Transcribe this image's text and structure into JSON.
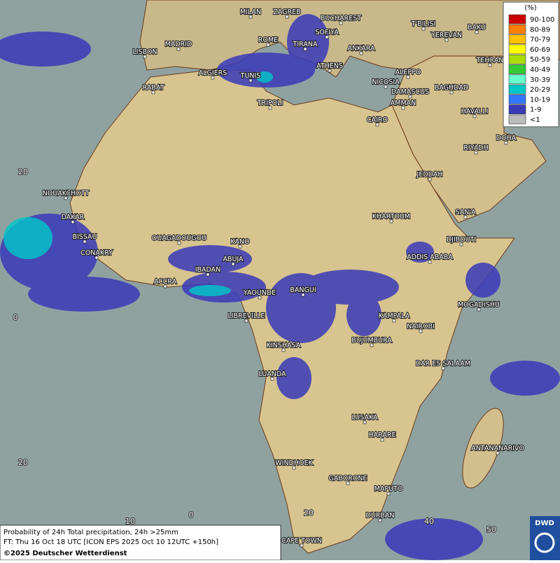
{
  "map": {
    "cities": [
      "MILAN",
      "ZAGREB",
      "BUCHAREST",
      "SOFIYA",
      "ROME",
      "TIRANA",
      "ANKARA",
      "T'BILISI",
      "BAKU",
      "YEREVAN",
      "MADRID",
      "LISBON",
      "ATHENS",
      "TEHRAN",
      "ALGIERS",
      "TUNIS",
      "ALEPPO",
      "NICOSIA",
      "RABAT",
      "BAGHDAD",
      "DAMASCUS",
      "TRIPOLI",
      "AMMAN",
      "HAVALLI",
      "CAIRO",
      "DOHA",
      "RIYADH",
      "NOUAKCHOTT",
      "JEDDAH",
      "DAKAR",
      "SAN'A",
      "KHARTOUM",
      "BISSAU",
      "OUAGADOUGOU",
      "KANO",
      "DJIBOUTI",
      "CONAKRY",
      "ABUJA",
      "ADDIS ABABA",
      "IBADAN",
      "ACCRA",
      "YAOUNDE",
      "BANGUI",
      "MOGADISHU",
      "LIBREVILLE",
      "KAMPALA",
      "NAIROBI",
      "KINSHASA",
      "BUJUMBURA",
      "DAR ES SALAAM",
      "LUANDA",
      "LUSAKA",
      "HARARE",
      "ANTANANARIVO",
      "WINDHOEK",
      "GABORONE",
      "MAPUTO",
      "DURBAN",
      "CAPE TOWN"
    ],
    "lat_labels": [
      "20",
      "0",
      "20"
    ],
    "lon_labels": [
      "10",
      "0",
      "20",
      "40",
      "50"
    ]
  },
  "legend": {
    "title": "(%)",
    "entries": [
      {
        "label": "90-100",
        "color": "#cc0000"
      },
      {
        "label": "80-89",
        "color": "#ff8000"
      },
      {
        "label": "70-79",
        "color": "#ffc000"
      },
      {
        "label": "60-69",
        "color": "#ffff00"
      },
      {
        "label": "50-59",
        "color": "#aadd00"
      },
      {
        "label": "40-49",
        "color": "#33cc33"
      },
      {
        "label": "30-39",
        "color": "#66ffcc"
      },
      {
        "label": "20-29",
        "color": "#00c8c8"
      },
      {
        "label": "10-19",
        "color": "#3377ff"
      },
      {
        "label": "1-9",
        "color": "#3a3ab8"
      },
      {
        "label": "<1",
        "color": "#bbbbbb"
      }
    ]
  },
  "footer": {
    "line1": "Probability of 24h Total precipitation, 24h >25mm",
    "line2": "FT: Thu 16 Oct 18 UTC [ICON EPS 2025 Oct 10 12UTC +150h]",
    "copyright": "©2025 Deutscher Wetterdienst"
  },
  "logo": "DWD"
}
